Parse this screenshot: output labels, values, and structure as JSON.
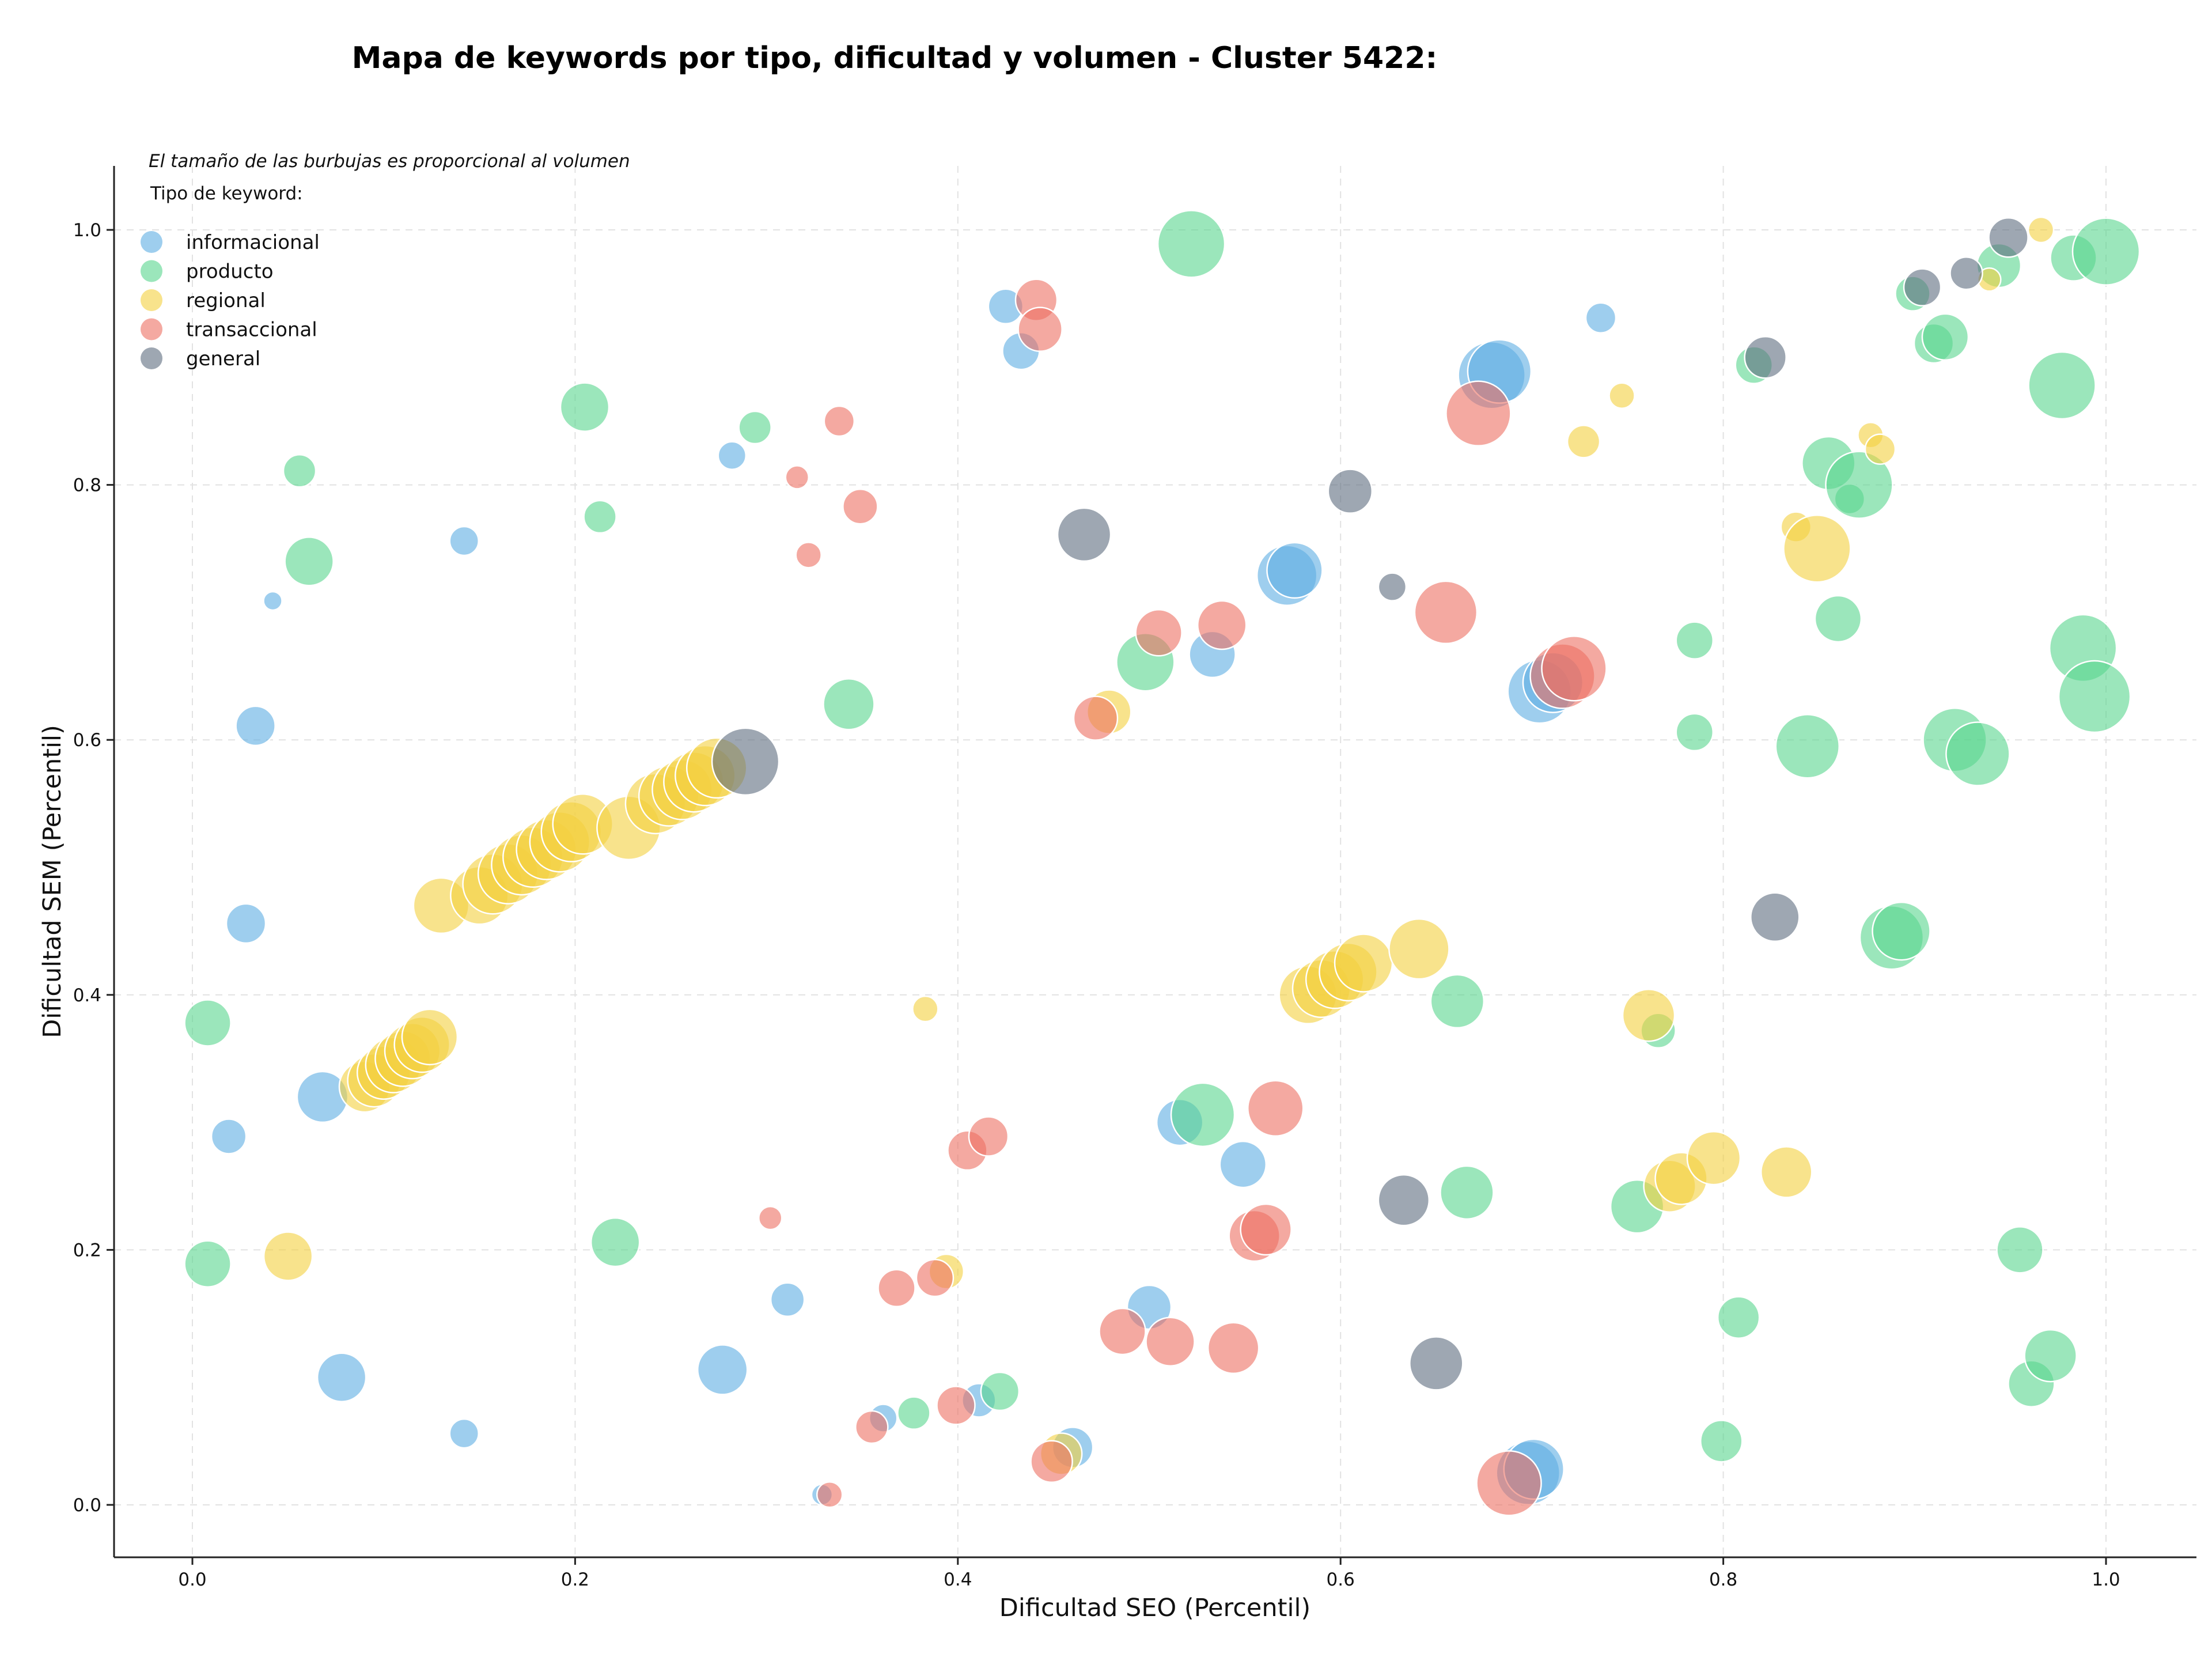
{
  "chart_data": {
    "type": "scatter",
    "title": "Mapa de keywords por tipo, dificultad y volumen - Cluster 5422:",
    "xlabel": "Dificultad SEO (Percentil)",
    "ylabel": "Dificultad SEM (Percentil)",
    "note": "El tamaño de las burbujas es proporcional al volumen",
    "legend_title": "Tipo de keyword:",
    "legend_position": "top-left",
    "xlim": [
      -0.04,
      1.05
    ],
    "ylim": [
      -0.04,
      1.05
    ],
    "xticks": [
      "0.0",
      "0.2",
      "0.4",
      "0.6",
      "0.8",
      "1.0"
    ],
    "yticks": [
      "0.0",
      "0.2",
      "0.4",
      "0.6",
      "0.8",
      "1.0"
    ],
    "grid": true,
    "series": [
      {
        "name": "informacional",
        "color": "#5DADE2",
        "points": [
          {
            "x": 0.042,
            "y": 0.709,
            "size": 16
          },
          {
            "x": 0.142,
            "y": 0.756,
            "size": 25
          },
          {
            "x": 0.033,
            "y": 0.611,
            "size": 34
          },
          {
            "x": 0.028,
            "y": 0.456,
            "size": 34
          },
          {
            "x": 0.068,
            "y": 0.32,
            "size": 44
          },
          {
            "x": 0.019,
            "y": 0.289,
            "size": 30
          },
          {
            "x": 0.078,
            "y": 0.1,
            "size": 42
          },
          {
            "x": 0.142,
            "y": 0.056,
            "size": 25
          },
          {
            "x": 0.277,
            "y": 0.106,
            "size": 43
          },
          {
            "x": 0.311,
            "y": 0.161,
            "size": 29
          },
          {
            "x": 0.282,
            "y": 0.823,
            "size": 24
          },
          {
            "x": 0.425,
            "y": 0.94,
            "size": 30
          },
          {
            "x": 0.433,
            "y": 0.905,
            "size": 32
          },
          {
            "x": 0.329,
            "y": 0.008,
            "size": 18
          },
          {
            "x": 0.361,
            "y": 0.068,
            "size": 24
          },
          {
            "x": 0.411,
            "y": 0.082,
            "size": 29
          },
          {
            "x": 0.46,
            "y": 0.045,
            "size": 35
          },
          {
            "x": 0.5,
            "y": 0.155,
            "size": 38
          },
          {
            "x": 0.516,
            "y": 0.3,
            "size": 40
          },
          {
            "x": 0.549,
            "y": 0.267,
            "size": 40
          },
          {
            "x": 0.533,
            "y": 0.667,
            "size": 40
          },
          {
            "x": 0.572,
            "y": 0.729,
            "size": 52
          },
          {
            "x": 0.576,
            "y": 0.733,
            "size": 48
          },
          {
            "x": 0.679,
            "y": 0.886,
            "size": 58
          },
          {
            "x": 0.683,
            "y": 0.889,
            "size": 55
          },
          {
            "x": 0.704,
            "y": 0.638,
            "size": 55
          },
          {
            "x": 0.711,
            "y": 0.645,
            "size": 52
          },
          {
            "x": 0.736,
            "y": 0.931,
            "size": 26
          },
          {
            "x": 0.698,
            "y": 0.025,
            "size": 55
          },
          {
            "x": 0.701,
            "y": 0.028,
            "size": 52
          }
        ]
      },
      {
        "name": "producto",
        "color": "#58D68D",
        "points": [
          {
            "x": 0.056,
            "y": 0.811,
            "size": 28
          },
          {
            "x": 0.061,
            "y": 0.74,
            "size": 42
          },
          {
            "x": 0.205,
            "y": 0.861,
            "size": 42
          },
          {
            "x": 0.213,
            "y": 0.775,
            "size": 28
          },
          {
            "x": 0.294,
            "y": 0.845,
            "size": 28
          },
          {
            "x": 0.343,
            "y": 0.628,
            "size": 44
          },
          {
            "x": 0.008,
            "y": 0.378,
            "size": 40
          },
          {
            "x": 0.008,
            "y": 0.189,
            "size": 40
          },
          {
            "x": 0.221,
            "y": 0.206,
            "size": 42
          },
          {
            "x": 0.377,
            "y": 0.072,
            "size": 28
          },
          {
            "x": 0.422,
            "y": 0.089,
            "size": 33
          },
          {
            "x": 0.498,
            "y": 0.661,
            "size": 50
          },
          {
            "x": 0.522,
            "y": 0.989,
            "size": 58
          },
          {
            "x": 0.528,
            "y": 0.306,
            "size": 55
          },
          {
            "x": 0.661,
            "y": 0.395,
            "size": 46
          },
          {
            "x": 0.666,
            "y": 0.245,
            "size": 46
          },
          {
            "x": 0.755,
            "y": 0.234,
            "size": 46
          },
          {
            "x": 0.766,
            "y": 0.372,
            "size": 30
          },
          {
            "x": 0.785,
            "y": 0.678,
            "size": 32
          },
          {
            "x": 0.785,
            "y": 0.606,
            "size": 32
          },
          {
            "x": 0.808,
            "y": 0.147,
            "size": 36
          },
          {
            "x": 0.799,
            "y": 0.05,
            "size": 36
          },
          {
            "x": 0.816,
            "y": 0.894,
            "size": 32
          },
          {
            "x": 0.844,
            "y": 0.595,
            "size": 55
          },
          {
            "x": 0.855,
            "y": 0.817,
            "size": 46
          },
          {
            "x": 0.86,
            "y": 0.695,
            "size": 40
          },
          {
            "x": 0.866,
            "y": 0.789,
            "size": 26
          },
          {
            "x": 0.871,
            "y": 0.8,
            "size": 58
          },
          {
            "x": 0.888,
            "y": 0.445,
            "size": 55
          },
          {
            "x": 0.893,
            "y": 0.45,
            "size": 50
          },
          {
            "x": 0.899,
            "y": 0.95,
            "size": 30
          },
          {
            "x": 0.91,
            "y": 0.911,
            "size": 34
          },
          {
            "x": 0.916,
            "y": 0.916,
            "size": 40
          },
          {
            "x": 0.921,
            "y": 0.6,
            "size": 55
          },
          {
            "x": 0.933,
            "y": 0.589,
            "size": 55
          },
          {
            "x": 0.944,
            "y": 0.972,
            "size": 38
          },
          {
            "x": 0.955,
            "y": 0.2,
            "size": 40
          },
          {
            "x": 0.961,
            "y": 0.095,
            "size": 40
          },
          {
            "x": 0.971,
            "y": 0.117,
            "size": 45
          },
          {
            "x": 0.977,
            "y": 0.878,
            "size": 58
          },
          {
            "x": 0.983,
            "y": 0.978,
            "size": 40
          },
          {
            "x": 0.988,
            "y": 0.672,
            "size": 58
          },
          {
            "x": 0.994,
            "y": 0.634,
            "size": 62
          },
          {
            "x": 1.0,
            "y": 0.983,
            "size": 58
          }
        ]
      },
      {
        "name": "regional",
        "color": "#F4D03F",
        "points": [
          {
            "x": 0.05,
            "y": 0.195,
            "size": 42
          },
          {
            "x": 0.09,
            "y": 0.328,
            "size": 44
          },
          {
            "x": 0.095,
            "y": 0.333,
            "size": 46
          },
          {
            "x": 0.1,
            "y": 0.339,
            "size": 46
          },
          {
            "x": 0.105,
            "y": 0.345,
            "size": 48
          },
          {
            "x": 0.11,
            "y": 0.35,
            "size": 48
          },
          {
            "x": 0.115,
            "y": 0.356,
            "size": 48
          },
          {
            "x": 0.12,
            "y": 0.361,
            "size": 48
          },
          {
            "x": 0.124,
            "y": 0.367,
            "size": 48
          },
          {
            "x": 0.13,
            "y": 0.47,
            "size": 48
          },
          {
            "x": 0.15,
            "y": 0.478,
            "size": 50
          },
          {
            "x": 0.157,
            "y": 0.487,
            "size": 52
          },
          {
            "x": 0.165,
            "y": 0.495,
            "size": 52
          },
          {
            "x": 0.172,
            "y": 0.502,
            "size": 52
          },
          {
            "x": 0.178,
            "y": 0.508,
            "size": 52
          },
          {
            "x": 0.185,
            "y": 0.514,
            "size": 52
          },
          {
            "x": 0.192,
            "y": 0.52,
            "size": 52
          },
          {
            "x": 0.198,
            "y": 0.528,
            "size": 52
          },
          {
            "x": 0.204,
            "y": 0.534,
            "size": 52
          },
          {
            "x": 0.228,
            "y": 0.531,
            "size": 55
          },
          {
            "x": 0.242,
            "y": 0.55,
            "size": 52
          },
          {
            "x": 0.249,
            "y": 0.556,
            "size": 52
          },
          {
            "x": 0.256,
            "y": 0.561,
            "size": 52
          },
          {
            "x": 0.262,
            "y": 0.567,
            "size": 52
          },
          {
            "x": 0.268,
            "y": 0.572,
            "size": 52
          },
          {
            "x": 0.274,
            "y": 0.578,
            "size": 52
          },
          {
            "x": 0.383,
            "y": 0.389,
            "size": 22
          },
          {
            "x": 0.394,
            "y": 0.183,
            "size": 30
          },
          {
            "x": 0.479,
            "y": 0.622,
            "size": 38
          },
          {
            "x": 0.454,
            "y": 0.04,
            "size": 36
          },
          {
            "x": 0.583,
            "y": 0.4,
            "size": 50
          },
          {
            "x": 0.59,
            "y": 0.405,
            "size": 50
          },
          {
            "x": 0.597,
            "y": 0.412,
            "size": 50
          },
          {
            "x": 0.604,
            "y": 0.418,
            "size": 50
          },
          {
            "x": 0.612,
            "y": 0.425,
            "size": 50
          },
          {
            "x": 0.641,
            "y": 0.436,
            "size": 52
          },
          {
            "x": 0.727,
            "y": 0.834,
            "size": 28
          },
          {
            "x": 0.747,
            "y": 0.87,
            "size": 22
          },
          {
            "x": 0.761,
            "y": 0.384,
            "size": 45
          },
          {
            "x": 0.772,
            "y": 0.25,
            "size": 45
          },
          {
            "x": 0.778,
            "y": 0.256,
            "size": 45
          },
          {
            "x": 0.795,
            "y": 0.272,
            "size": 46
          },
          {
            "x": 0.833,
            "y": 0.261,
            "size": 44
          },
          {
            "x": 0.838,
            "y": 0.767,
            "size": 26
          },
          {
            "x": 0.849,
            "y": 0.75,
            "size": 58
          },
          {
            "x": 0.877,
            "y": 0.839,
            "size": 22
          },
          {
            "x": 0.882,
            "y": 0.828,
            "size": 26
          },
          {
            "x": 0.939,
            "y": 0.961,
            "size": 20
          },
          {
            "x": 0.966,
            "y": 1.0,
            "size": 22
          }
        ]
      },
      {
        "name": "transaccional",
        "color": "#EC7063",
        "points": [
          {
            "x": 0.316,
            "y": 0.806,
            "size": 20
          },
          {
            "x": 0.322,
            "y": 0.745,
            "size": 22
          },
          {
            "x": 0.338,
            "y": 0.85,
            "size": 26
          },
          {
            "x": 0.349,
            "y": 0.783,
            "size": 30
          },
          {
            "x": 0.302,
            "y": 0.225,
            "size": 20
          },
          {
            "x": 0.333,
            "y": 0.008,
            "size": 22
          },
          {
            "x": 0.355,
            "y": 0.061,
            "size": 28
          },
          {
            "x": 0.368,
            "y": 0.17,
            "size": 32
          },
          {
            "x": 0.388,
            "y": 0.178,
            "size": 32
          },
          {
            "x": 0.399,
            "y": 0.078,
            "size": 33
          },
          {
            "x": 0.405,
            "y": 0.278,
            "size": 34
          },
          {
            "x": 0.416,
            "y": 0.289,
            "size": 34
          },
          {
            "x": 0.441,
            "y": 0.945,
            "size": 36
          },
          {
            "x": 0.443,
            "y": 0.922,
            "size": 38
          },
          {
            "x": 0.449,
            "y": 0.034,
            "size": 36
          },
          {
            "x": 0.472,
            "y": 0.617,
            "size": 38
          },
          {
            "x": 0.486,
            "y": 0.136,
            "size": 40
          },
          {
            "x": 0.505,
            "y": 0.684,
            "size": 40
          },
          {
            "x": 0.511,
            "y": 0.128,
            "size": 42
          },
          {
            "x": 0.538,
            "y": 0.69,
            "size": 42
          },
          {
            "x": 0.544,
            "y": 0.123,
            "size": 44
          },
          {
            "x": 0.555,
            "y": 0.211,
            "size": 44
          },
          {
            "x": 0.561,
            "y": 0.216,
            "size": 44
          },
          {
            "x": 0.566,
            "y": 0.311,
            "size": 48
          },
          {
            "x": 0.655,
            "y": 0.7,
            "size": 54
          },
          {
            "x": 0.672,
            "y": 0.856,
            "size": 56
          },
          {
            "x": 0.688,
            "y": 0.017,
            "size": 56
          },
          {
            "x": 0.716,
            "y": 0.65,
            "size": 56
          },
          {
            "x": 0.722,
            "y": 0.656,
            "size": 56
          }
        ]
      },
      {
        "name": "general",
        "color": "#5D6D7E",
        "points": [
          {
            "x": 0.289,
            "y": 0.583,
            "size": 58
          },
          {
            "x": 0.466,
            "y": 0.761,
            "size": 46
          },
          {
            "x": 0.605,
            "y": 0.795,
            "size": 38
          },
          {
            "x": 0.627,
            "y": 0.72,
            "size": 24
          },
          {
            "x": 0.633,
            "y": 0.239,
            "size": 44
          },
          {
            "x": 0.65,
            "y": 0.111,
            "size": 46
          },
          {
            "x": 0.822,
            "y": 0.9,
            "size": 36
          },
          {
            "x": 0.827,
            "y": 0.461,
            "size": 42
          },
          {
            "x": 0.904,
            "y": 0.955,
            "size": 32
          },
          {
            "x": 0.927,
            "y": 0.966,
            "size": 28
          },
          {
            "x": 0.949,
            "y": 0.994,
            "size": 34
          }
        ]
      }
    ]
  }
}
